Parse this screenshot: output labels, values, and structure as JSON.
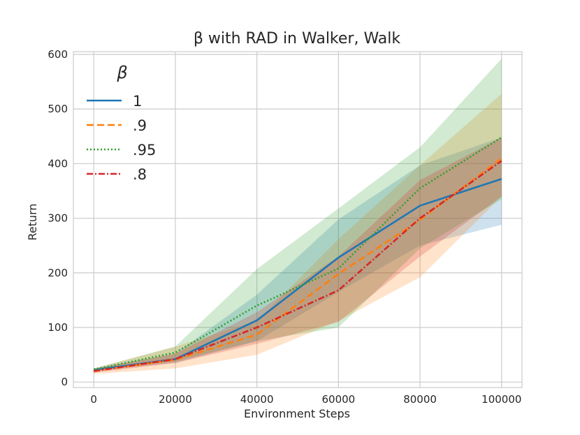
{
  "chart_data": {
    "type": "line",
    "title": "β with RAD in Walker, Walk",
    "xlabel": "Environment Steps",
    "ylabel": "Return",
    "xlim": [
      -5000,
      105000
    ],
    "ylim": [
      -10,
      605
    ],
    "xticks": [
      0,
      20000,
      40000,
      60000,
      80000,
      100000
    ],
    "yticks": [
      0,
      100,
      200,
      300,
      400,
      500,
      600
    ],
    "grid": true,
    "legend": {
      "title": "β",
      "placement": "upper-left"
    },
    "x": [
      0,
      20000,
      40000,
      60000,
      80000,
      100000
    ],
    "series": [
      {
        "name": "1",
        "color": "#1f77b4",
        "dash": "solid",
        "values": [
          22,
          42,
          113,
          228,
          323,
          372
        ],
        "lower": [
          20,
          35,
          75,
          165,
          250,
          288
        ],
        "upper": [
          25,
          52,
          160,
          298,
          397,
          448
        ]
      },
      {
        "name": ".9",
        "color": "#ff7f0e",
        "dash": "dashed",
        "values": [
          20,
          41,
          87,
          198,
          297,
          410
        ],
        "lower": [
          15,
          25,
          50,
          112,
          192,
          340
        ],
        "upper": [
          25,
          65,
          112,
          262,
          397,
          528
        ]
      },
      {
        "name": ".95",
        "color": "#2ca02c",
        "dash": "dotted",
        "values": [
          23,
          54,
          140,
          208,
          355,
          448
        ],
        "lower": [
          20,
          38,
          75,
          100,
          245,
          335
        ],
        "upper": [
          25,
          65,
          207,
          318,
          430,
          592
        ]
      },
      {
        "name": ".8",
        "color": "#d62728",
        "dash": "dashdot",
        "values": [
          20,
          42,
          100,
          168,
          300,
          405
        ],
        "lower": [
          17,
          35,
          70,
          110,
          230,
          340
        ],
        "upper": [
          24,
          52,
          128,
          230,
          370,
          448
        ]
      }
    ]
  }
}
